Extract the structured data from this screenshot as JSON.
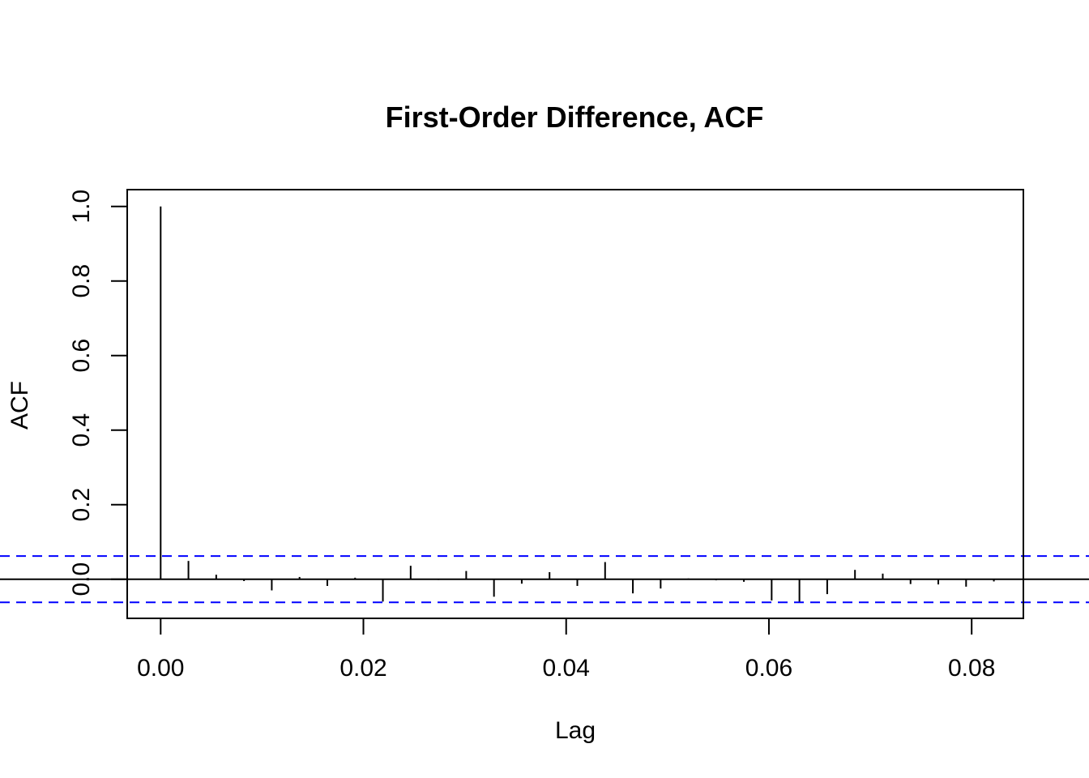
{
  "chart_data": {
    "type": "bar",
    "title": "First-Order Difference, ACF",
    "xlabel": "Lag",
    "ylabel": "ACF",
    "xlim": [
      -0.0033,
      0.0851
    ],
    "ylim": [
      -0.105,
      1.045
    ],
    "x_ticks": [
      0.0,
      0.02,
      0.04,
      0.06,
      0.08
    ],
    "x_tick_labels": [
      "0.00",
      "0.02",
      "0.04",
      "0.06",
      "0.08"
    ],
    "y_ticks": [
      0.0,
      0.2,
      0.4,
      0.6,
      0.8,
      1.0
    ],
    "y_tick_labels": [
      "0.0",
      "0.2",
      "0.4",
      "0.6",
      "0.8",
      "1.0"
    ],
    "confidence_bounds": [
      0.062,
      -0.062
    ],
    "zero_line": 0,
    "colors": {
      "spikes": "#000000",
      "confidence": "#0000ff",
      "frame": "#000000"
    },
    "lags": [
      0.0,
      0.00274,
      0.00548,
      0.00822,
      0.01096,
      0.0137,
      0.01644,
      0.01918,
      0.02192,
      0.02466,
      0.0274,
      0.03014,
      0.03288,
      0.03562,
      0.03836,
      0.0411,
      0.04384,
      0.04658,
      0.04932,
      0.05206,
      0.05479,
      0.05753,
      0.06027,
      0.06301,
      0.06575,
      0.06849,
      0.07123,
      0.07397,
      0.07671,
      0.07945,
      0.08219
    ],
    "values": [
      1.0,
      0.049,
      0.012,
      -0.005,
      -0.03,
      0.006,
      -0.018,
      0.004,
      -0.06,
      0.036,
      -0.002,
      0.022,
      -0.047,
      -0.012,
      0.019,
      -0.018,
      0.046,
      -0.038,
      -0.025,
      0.002,
      -0.003,
      -0.007,
      -0.057,
      -0.062,
      -0.04,
      0.025,
      0.015,
      -0.013,
      -0.014,
      -0.02,
      -0.006
    ]
  }
}
